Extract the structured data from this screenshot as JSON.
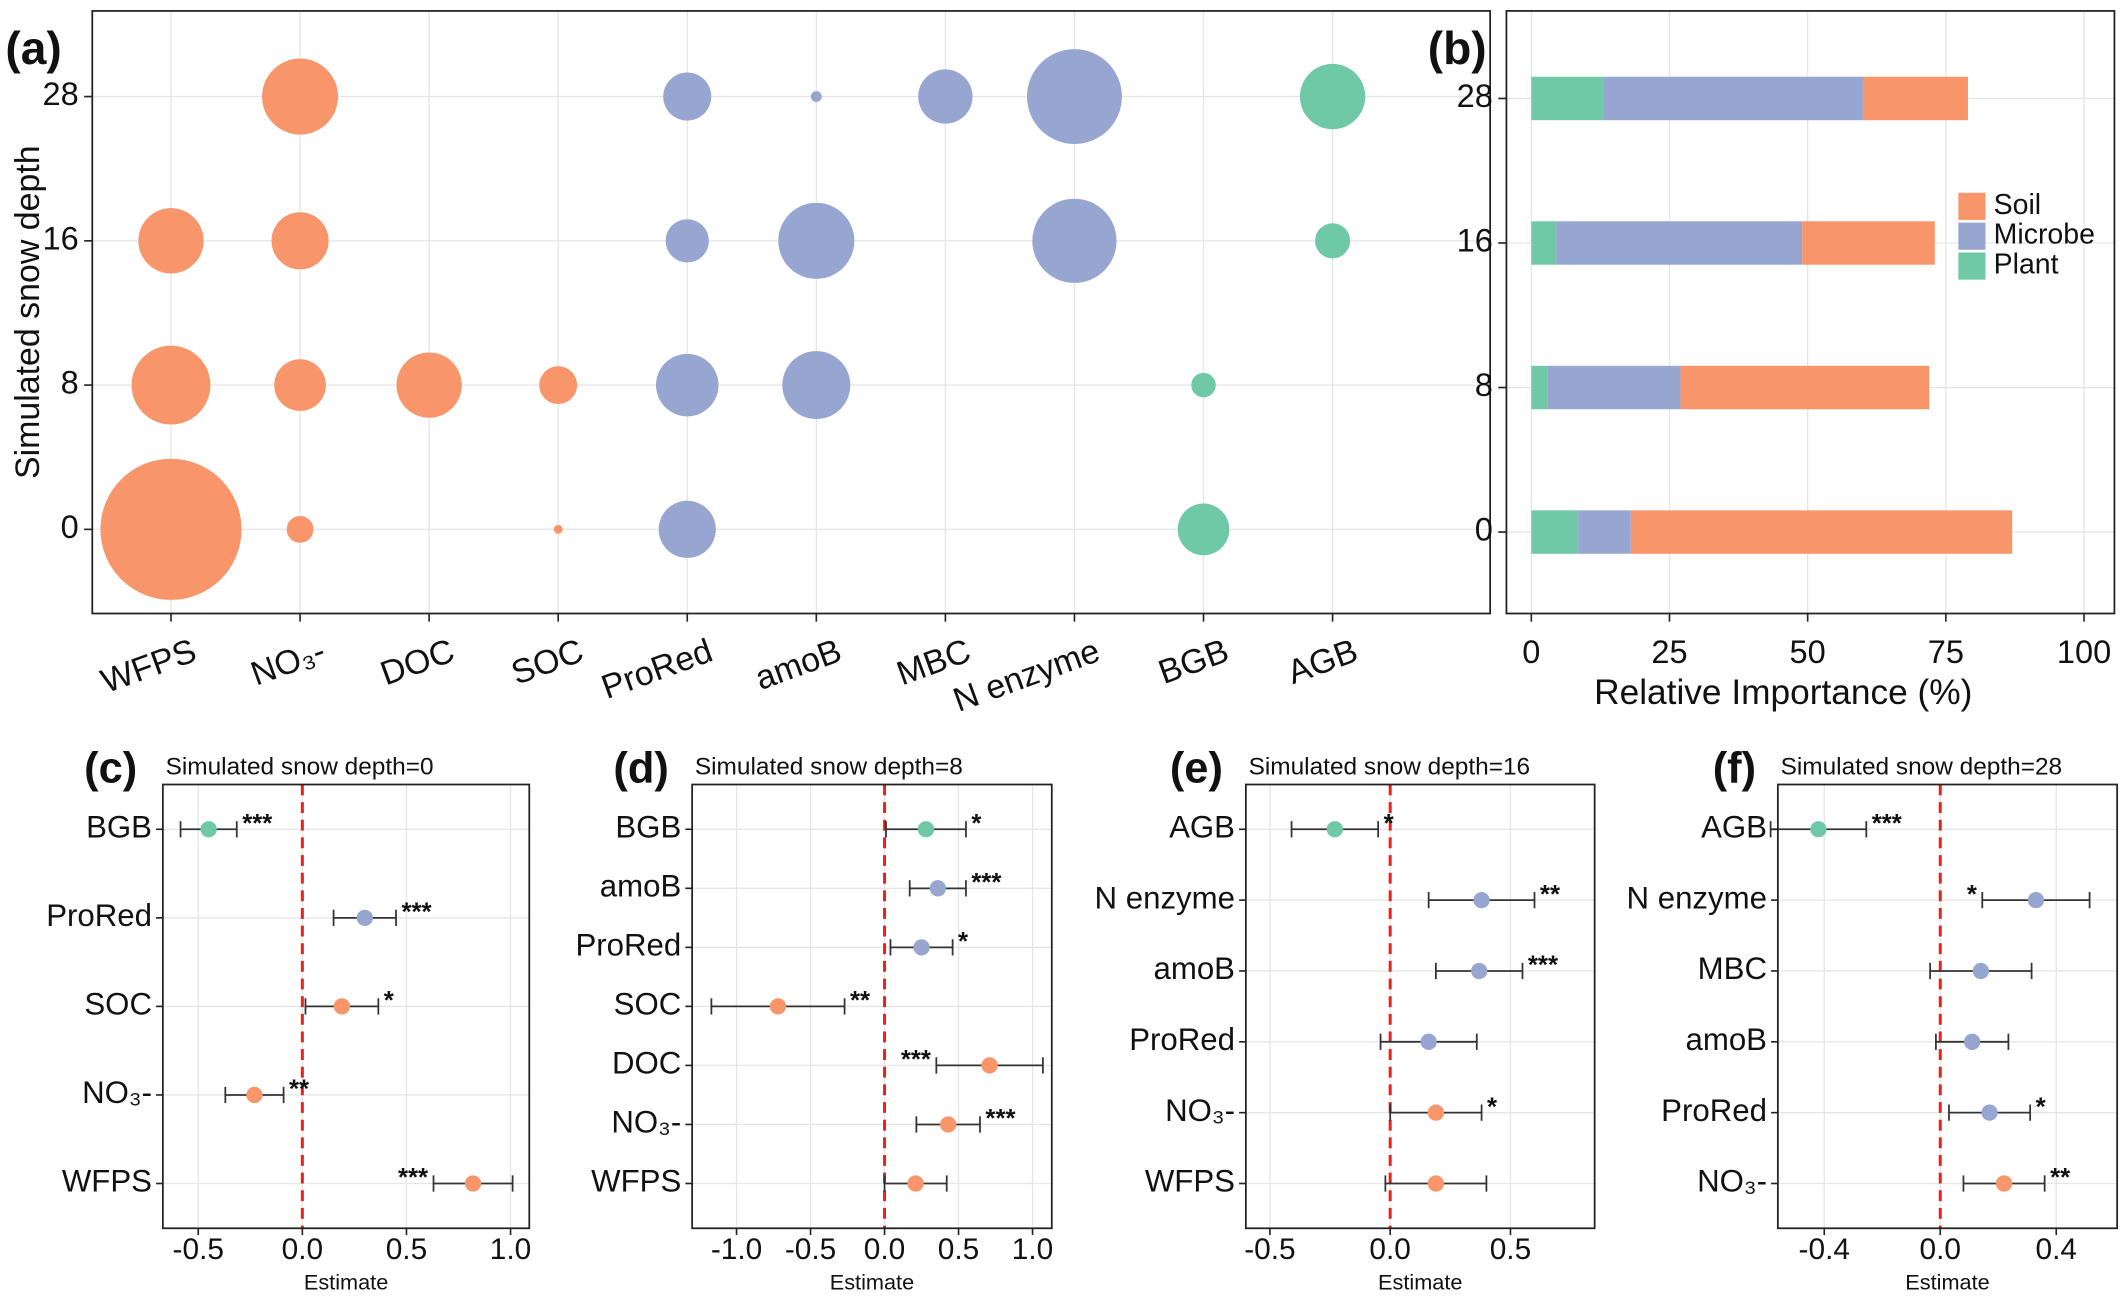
{
  "chart_data": [
    {
      "type": "bubble",
      "panel_label": "(a)",
      "ylabel": "Simulated snow depth",
      "categories": [
        "WFPS",
        "NO₃-",
        "DOC",
        "SOC",
        "ProRed",
        "amoB",
        "MBC",
        "N enzyme",
        "BGB",
        "AGB"
      ],
      "ycategories": [
        0,
        8,
        16,
        28
      ],
      "colors": [
        "#f8956a",
        "#f8956a",
        "#f8956a",
        "#f8956a",
        "#97a5d1",
        "#97a5d1",
        "#97a5d1",
        "#97a5d1",
        "#70c9a6",
        "#70c9a6"
      ],
      "sizes": [
        [
          50,
          1.8,
          null,
          0.2,
          8.2,
          null,
          null,
          null,
          6.7,
          null
        ],
        [
          15.6,
          6.7,
          10.7,
          3.6,
          9.8,
          11.6,
          null,
          null,
          1.5,
          null
        ],
        [
          10.7,
          8.2,
          null,
          null,
          4.7,
          14.5,
          null,
          17.8,
          null,
          3.1
        ],
        [
          null,
          14.5,
          null,
          null,
          5.8,
          0.3,
          7.4,
          22.6,
          null,
          10.7
        ]
      ],
      "grid": true
    },
    {
      "type": "stacked_barh",
      "panel_label": "(b)",
      "xlabel": "Relative Importance (%)",
      "categories": [
        0,
        8,
        16,
        28
      ],
      "series": [
        {
          "name": "Plant",
          "color": "#70c9a6",
          "values": [
            8.5,
            3,
            4.5,
            13
          ]
        },
        {
          "name": "Microbe",
          "color": "#97a5d1",
          "values": [
            9.5,
            24,
            44.5,
            47
          ]
        },
        {
          "name": "Soil",
          "color": "#f8956a",
          "values": [
            69,
            45,
            24,
            19
          ]
        }
      ],
      "legend_order": [
        "Soil",
        "Microbe",
        "Plant"
      ],
      "legend": "upper right",
      "xlim": [
        -4.5,
        105.5
      ],
      "xticks": [
        0,
        25,
        50,
        75,
        100
      ],
      "grid": true
    },
    {
      "type": "forest",
      "panel_label": "(c)",
      "title": "Simulated snow depth=0",
      "xlabel": "Estimate",
      "categories": [
        "BGB",
        "ProRed",
        "SOC",
        "NO₃-",
        "WFPS"
      ],
      "values": [
        -0.45,
        0.3,
        0.19,
        -0.23,
        0.82
      ],
      "errors": [
        0.135,
        0.15,
        0.175,
        0.14,
        0.19
      ],
      "significance": [
        "***",
        "***",
        "*",
        "**",
        "***"
      ],
      "colors": [
        "#70c9a6",
        "#97a5d1",
        "#f8956a",
        "#f8956a",
        "#f8956a"
      ],
      "xlim": [
        -0.67,
        1.09
      ],
      "xticks": [
        -0.5,
        {
          "value": 0,
          "label": "0.0"
        },
        0.5,
        {
          "value": 1,
          "label": "1.0"
        }
      ],
      "grid": true
    },
    {
      "type": "forest",
      "panel_label": "(d)",
      "title": "Simulated snow depth=8",
      "xlabel": "Estimate",
      "categories": [
        "BGB",
        "amoB",
        "ProRed",
        "SOC",
        "DOC",
        "NO₃-",
        "WFPS"
      ],
      "values": [
        0.28,
        0.36,
        0.25,
        -0.72,
        0.71,
        0.43,
        0.21
      ],
      "errors": [
        0.27,
        0.19,
        0.21,
        0.45,
        0.36,
        0.215,
        0.21
      ],
      "significance": [
        "*",
        "***",
        "*",
        "**",
        "***",
        "***",
        null
      ],
      "colors": [
        "#70c9a6",
        "#97a5d1",
        "#97a5d1",
        "#f8956a",
        "#f8956a",
        "#f8956a",
        "#f8956a"
      ],
      "xlim": [
        -1.3,
        1.13
      ],
      "xticks": [
        {
          "value": -1,
          "label": "-1.0"
        },
        -0.5,
        {
          "value": 0,
          "label": "0.0"
        },
        0.5,
        {
          "value": 1,
          "label": "1.0"
        }
      ],
      "grid": true
    },
    {
      "type": "forest",
      "panel_label": "(e)",
      "title": "Simulated snow depth=16",
      "xlabel": "Estimate",
      "categories": [
        "AGB",
        "N enzyme",
        "amoB",
        "ProRed",
        "NO₃-",
        "WFPS"
      ],
      "values": [
        -0.23,
        0.38,
        0.37,
        0.16,
        0.19,
        0.19
      ],
      "errors": [
        0.18,
        0.22,
        0.18,
        0.2,
        0.19,
        0.21
      ],
      "significance": [
        "*",
        "**",
        "***",
        null,
        "*",
        null
      ],
      "colors": [
        "#70c9a6",
        "#97a5d1",
        "#97a5d1",
        "#97a5d1",
        "#f8956a",
        "#f8956a"
      ],
      "xlim": [
        -0.6,
        0.85
      ],
      "xticks": [
        -0.5,
        {
          "value": 0,
          "label": "0.0"
        },
        0.5
      ],
      "grid": true
    },
    {
      "type": "forest",
      "panel_label": "(f)",
      "title": "Simulated snow depth=28",
      "xlabel": "Estimate",
      "categories": [
        "AGB",
        "N enzyme",
        "MBC",
        "amoB",
        "ProRed",
        "NO₃-"
      ],
      "values": [
        -0.42,
        0.33,
        0.14,
        0.11,
        0.17,
        0.22
      ],
      "errors": [
        0.165,
        0.185,
        0.175,
        0.125,
        0.14,
        0.14
      ],
      "significance": [
        "***",
        "*",
        null,
        null,
        "*",
        "**"
      ],
      "colors": [
        "#70c9a6",
        "#97a5d1",
        "#97a5d1",
        "#97a5d1",
        "#97a5d1",
        "#f8956a"
      ],
      "xlim": [
        -0.56,
        0.61
      ],
      "xticks": [
        -0.4,
        {
          "value": 0,
          "label": "0.0"
        },
        0.4
      ],
      "grid": true
    }
  ]
}
